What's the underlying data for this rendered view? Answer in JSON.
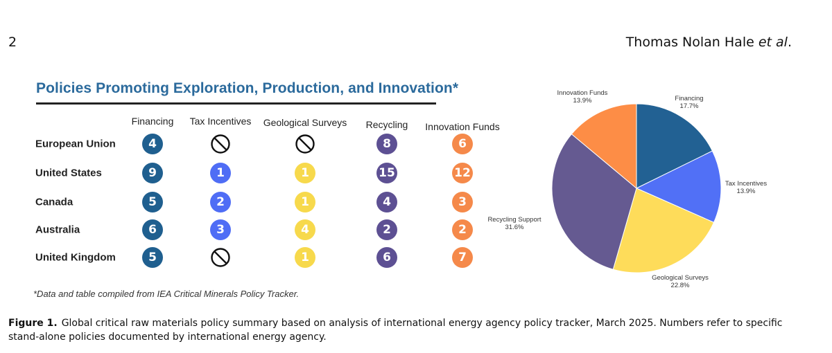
{
  "header": {
    "page_number": "2",
    "authors": "Thomas Nolan Hale",
    "et_al": "et al"
  },
  "figure": {
    "title": "Policies Promoting Exploration, Production, and Innovation*",
    "footnote": "*Data and table compiled from IEA Critical Minerals Policy Tracker.",
    "caption_label": "Figure 1.",
    "caption_text": "Global critical raw materials policy summary based on analysis of international energy agency policy tracker, March 2025. Numbers refer to specific stand-alone policies documented by international energy agency."
  },
  "colors": {
    "financing": "#1f5f8f",
    "tax_incentives": "#4f6df5",
    "geological_surveys": "#f7d94c",
    "recycling": "#5d5093",
    "innovation_funds": "#f5894a",
    "title": "#2b6a9c"
  },
  "chart_data": [
    {
      "type": "table",
      "columns": [
        "Financing",
        "Tax Incentives",
        "Geological Surveys",
        "Recycling",
        "Innovation Funds"
      ],
      "rows": [
        {
          "country": "European Union",
          "values": [
            "4",
            "none",
            "none",
            "8",
            "6"
          ]
        },
        {
          "country": "United States",
          "values": [
            "9",
            "1",
            "1",
            "15",
            "12"
          ]
        },
        {
          "country": "Canada",
          "values": [
            "5",
            "2",
            "1",
            "4",
            "3"
          ]
        },
        {
          "country": "Australia",
          "values": [
            "6",
            "3",
            "4",
            "2",
            "2"
          ]
        },
        {
          "country": "United Kingdom",
          "values": [
            "5",
            "none",
            "1",
            "6",
            "7"
          ]
        }
      ],
      "none_icon": "prohibited-icon"
    },
    {
      "type": "pie",
      "slices": [
        {
          "label": "Financing",
          "pct_label": "17.7%",
          "value": 17.7,
          "color": "#226193"
        },
        {
          "label": "Tax Incentives",
          "pct_label": "13.9%",
          "value": 13.9,
          "color": "#5170f6"
        },
        {
          "label": "Geological Surveys",
          "pct_label": "22.8%",
          "value": 22.8,
          "color": "#fedc5a"
        },
        {
          "label": "Recycling Support",
          "pct_label": "31.6%",
          "value": 31.6,
          "color": "#655a91"
        },
        {
          "label": "Innovation Funds",
          "pct_label": "13.9%",
          "value": 13.9,
          "color": "#fd8d46"
        }
      ]
    }
  ]
}
